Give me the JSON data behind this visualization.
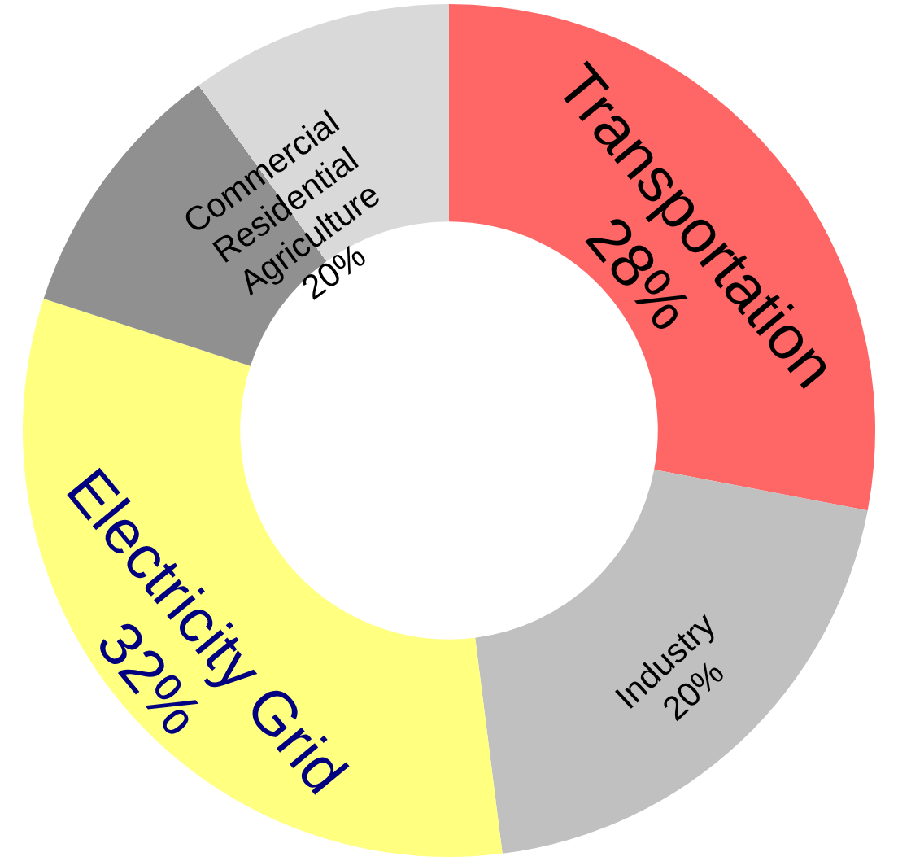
{
  "chart_data": {
    "type": "donut",
    "categories": [
      "Transportation",
      "Industry",
      "Electricity Grid",
      "Commercial\nResidential\nAgriculture"
    ],
    "values": [
      28,
      20,
      32,
      20
    ],
    "colors": [
      "#ff6666",
      "#c0c0c0",
      "#ffff80",
      [
        "#909090",
        "#d9d9d9"
      ]
    ],
    "value_labels": [
      "28%",
      "20%",
      "32%",
      "20%"
    ]
  }
}
